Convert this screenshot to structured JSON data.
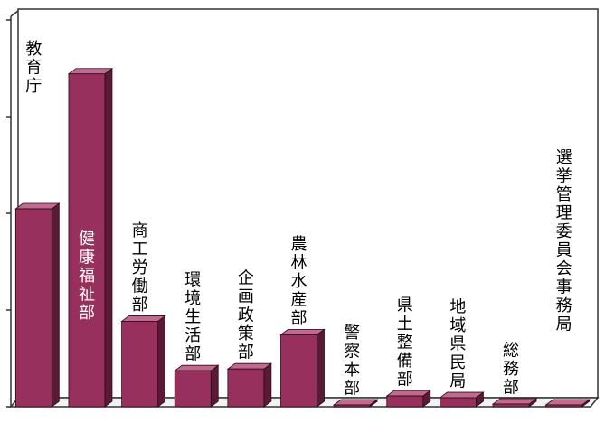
{
  "chart_data": {
    "type": "bar",
    "title": "",
    "xlabel": "",
    "ylabel": "",
    "categories": [
      "教育庁",
      "健康福祉部",
      "商工労働部",
      "環境生活部",
      "企画政策部",
      "農林水産部",
      "警察本部",
      "県土整備部",
      "地域県民局",
      "総務部",
      "選挙管理委員会事務局"
    ],
    "values": [
      220,
      370,
      95,
      40,
      42,
      80,
      2,
      12,
      10,
      3,
      2
    ],
    "ylim": [
      0,
      430
    ],
    "grid": false,
    "legend": "none",
    "colors": {
      "bar_front": "#98305e",
      "bar_side": "#5a1a36",
      "bar_top": "#c06a90",
      "axis": "#333333",
      "wall": "#ffffff",
      "label_dark": "#000000",
      "label_light": "#ffffff"
    }
  }
}
